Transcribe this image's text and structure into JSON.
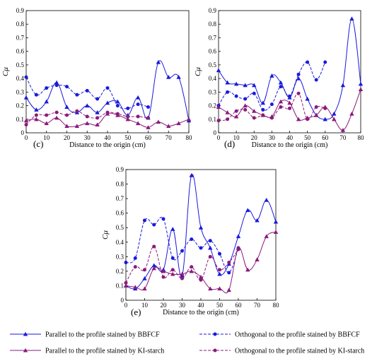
{
  "colors": {
    "bbfcf": "#1a1adc",
    "ki": "#8b1a7a"
  },
  "legend": {
    "items": [
      {
        "label": "Parallel to the profile stained by BBFCF",
        "color": "#1a1adc",
        "dash": false,
        "marker": "triangle"
      },
      {
        "label": "Orthogonal to the profile stained by BBFCF",
        "color": "#1a1adc",
        "dash": true,
        "marker": "circle"
      },
      {
        "label": "Parallel to the profile stained by KI-starch",
        "color": "#8b1a7a",
        "dash": false,
        "marker": "triangle"
      },
      {
        "label": "Orthogonal to the profile stained by KI-starch",
        "color": "#8b1a7a",
        "dash": true,
        "marker": "circle"
      }
    ]
  },
  "chart_data": [
    {
      "type": "line",
      "panel_label": "(c)",
      "xlabel": "Distance to the origin (cm)",
      "ylabel": "Cμ",
      "xlim": [
        0,
        80
      ],
      "ylim": [
        0,
        0.9
      ],
      "xticks": [
        0,
        10,
        20,
        30,
        40,
        50,
        60,
        70,
        80
      ],
      "yticks": [
        0,
        0.1,
        0.2,
        0.3,
        0.4,
        0.5,
        0.6,
        0.7,
        0.8,
        0.9
      ],
      "series": [
        {
          "name": "Parallel to the profile stained by BBFCF",
          "color": "#1a1adc",
          "dash": false,
          "marker": "triangle",
          "x": [
            0,
            5,
            10,
            15,
            20,
            25,
            30,
            35,
            40,
            45,
            50,
            55,
            60,
            65,
            70,
            75,
            80
          ],
          "y": [
            0.26,
            0.17,
            0.23,
            0.37,
            0.19,
            0.15,
            0.2,
            0.15,
            0.22,
            0.23,
            0.13,
            0.26,
            0.11,
            0.52,
            0.41,
            0.41,
            0.09
          ]
        },
        {
          "name": "Orthogonal to the profile stained by BBFCF",
          "color": "#1a1adc",
          "dash": true,
          "marker": "circle",
          "x": [
            0,
            5,
            10,
            15,
            20,
            25,
            30,
            35,
            40,
            45,
            50,
            55,
            60
          ],
          "y": [
            0.41,
            0.28,
            0.33,
            0.35,
            0.34,
            0.28,
            0.31,
            0.25,
            0.33,
            0.2,
            0.18,
            0.21,
            0.19
          ]
        },
        {
          "name": "Parallel to the profile stained by KI-starch",
          "color": "#8b1a7a",
          "dash": false,
          "marker": "triangle",
          "x": [
            0,
            5,
            10,
            15,
            20,
            25,
            30,
            35,
            40,
            45,
            50,
            55,
            60,
            65,
            70,
            75,
            80
          ],
          "y": [
            0.09,
            0.1,
            0.07,
            0.11,
            0.05,
            0.05,
            0.07,
            0.06,
            0.14,
            0.13,
            0.1,
            0.07,
            0.04,
            0.08,
            0.05,
            0.07,
            0.1
          ]
        },
        {
          "name": "Orthogonal to the profile stained by KI-starch",
          "color": "#8b1a7a",
          "dash": true,
          "marker": "circle",
          "x": [
            0,
            5,
            10,
            15,
            20,
            25,
            30,
            35,
            40,
            45,
            50,
            55,
            60
          ],
          "y": [
            0.06,
            0.13,
            0.13,
            0.15,
            0.13,
            0.16,
            0.12,
            0.11,
            0.15,
            0.14,
            0.12,
            0.12,
            0.11
          ]
        }
      ]
    },
    {
      "type": "line",
      "panel_label": "(d)",
      "xlabel": "Distance to the origin (cm)",
      "ylabel": "Cμ",
      "xlim": [
        0,
        80
      ],
      "ylim": [
        0,
        0.9
      ],
      "xticks": [
        0,
        10,
        20,
        30,
        40,
        50,
        60,
        70,
        80
      ],
      "yticks": [
        0,
        0.1,
        0.2,
        0.3,
        0.4,
        0.5,
        0.6,
        0.7,
        0.8,
        0.9
      ],
      "series": [
        {
          "name": "Parallel to the profile stained by BBFCF",
          "color": "#1a1adc",
          "dash": false,
          "marker": "triangle",
          "x": [
            0,
            5,
            10,
            15,
            20,
            25,
            30,
            35,
            40,
            45,
            50,
            55,
            60,
            65,
            70,
            75,
            80
          ],
          "y": [
            0.46,
            0.37,
            0.36,
            0.35,
            0.35,
            0.22,
            0.42,
            0.37,
            0.26,
            0.4,
            0.25,
            0.13,
            0.1,
            0.14,
            0.35,
            0.84,
            0.36
          ]
        },
        {
          "name": "Orthogonal to the profile stained by BBFCF",
          "color": "#1a1adc",
          "dash": true,
          "marker": "circle",
          "x": [
            0,
            5,
            10,
            15,
            20,
            25,
            30,
            35,
            40,
            45,
            50,
            55,
            60
          ],
          "y": [
            0.2,
            0.3,
            0.27,
            0.25,
            0.29,
            0.17,
            0.21,
            0.34,
            0.27,
            0.43,
            0.52,
            0.39,
            0.52
          ]
        },
        {
          "name": "Parallel to the profile stained by KI-starch",
          "color": "#8b1a7a",
          "dash": false,
          "marker": "triangle",
          "x": [
            0,
            5,
            10,
            15,
            20,
            25,
            30,
            35,
            40,
            45,
            50,
            55,
            60,
            65,
            70,
            75,
            80
          ],
          "y": [
            0.19,
            0.15,
            0.12,
            0.2,
            0.16,
            0.13,
            0.12,
            0.23,
            0.22,
            0.1,
            0.11,
            0.13,
            0.19,
            0.1,
            0.02,
            0.14,
            0.32
          ]
        },
        {
          "name": "Orthogonal to the profile stained by KI-starch",
          "color": "#8b1a7a",
          "dash": true,
          "marker": "circle",
          "x": [
            0,
            5,
            10,
            15,
            20,
            25,
            30,
            35,
            40,
            45,
            50,
            55,
            60
          ],
          "y": [
            0.09,
            0.1,
            0.16,
            0.17,
            0.11,
            0.13,
            0.11,
            0.19,
            0.18,
            0.29,
            0.1,
            0.19,
            0.18
          ]
        }
      ]
    },
    {
      "type": "line",
      "panel_label": "(e)",
      "xlabel": "Distance to the origin (cm)",
      "ylabel": "Cμ",
      "xlim": [
        0,
        80
      ],
      "ylim": [
        0,
        0.9
      ],
      "xticks": [
        0,
        10,
        20,
        30,
        40,
        50,
        60,
        70,
        80
      ],
      "yticks": [
        0,
        0.1,
        0.2,
        0.3,
        0.4,
        0.5,
        0.6,
        0.7,
        0.8,
        0.9
      ],
      "series": [
        {
          "name": "Parallel to the profile stained by BBFCF",
          "color": "#1a1adc",
          "dash": false,
          "marker": "triangle",
          "x": [
            0,
            5,
            10,
            15,
            20,
            25,
            30,
            35,
            40,
            45,
            50,
            55,
            60,
            65,
            70,
            75,
            80
          ],
          "y": [
            0.1,
            0.08,
            0.15,
            0.24,
            0.21,
            0.49,
            0.17,
            0.86,
            0.5,
            0.36,
            0.18,
            0.25,
            0.44,
            0.62,
            0.55,
            0.69,
            0.54
          ]
        },
        {
          "name": "Orthogonal to the profile stained by BBFCF",
          "color": "#1a1adc",
          "dash": true,
          "marker": "circle",
          "x": [
            0,
            5,
            10,
            15,
            20,
            25,
            30,
            35,
            40,
            45,
            50,
            55,
            60
          ],
          "y": [
            0.26,
            0.29,
            0.55,
            0.52,
            0.56,
            0.29,
            0.34,
            0.42,
            0.36,
            0.41,
            0.32,
            0.19,
            0.36
          ]
        },
        {
          "name": "Parallel to the profile stained by KI-starch",
          "color": "#8b1a7a",
          "dash": false,
          "marker": "triangle",
          "x": [
            0,
            5,
            10,
            15,
            20,
            25,
            30,
            35,
            40,
            45,
            50,
            55,
            60,
            65,
            70,
            75,
            80
          ],
          "y": [
            0.1,
            0.09,
            0.08,
            0.22,
            0.2,
            0.18,
            0.18,
            0.2,
            0.16,
            0.08,
            0.08,
            0.07,
            0.36,
            0.21,
            0.28,
            0.44,
            0.47
          ]
        },
        {
          "name": "Orthogonal to the profile stained by KI-starch",
          "color": "#8b1a7a",
          "dash": true,
          "marker": "circle",
          "x": [
            0,
            5,
            10,
            15,
            20,
            25,
            30,
            35,
            40,
            45,
            50,
            55,
            60
          ],
          "y": [
            0.12,
            0.23,
            0.21,
            0.37,
            0.16,
            0.21,
            0.15,
            0.23,
            0.14,
            0.3,
            0.21,
            0.26,
            0.35
          ]
        }
      ]
    }
  ]
}
